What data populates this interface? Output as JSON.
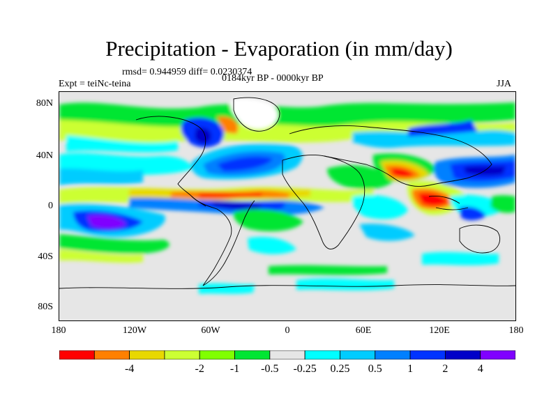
{
  "title": "Precipitation - Evaporation (in mm/day)",
  "stats": "rmsd= 0.944959 diff= 0.0230374",
  "expt": "Expt = teiNc-teina",
  "period": "0184kyr BP - 0000kyr BP",
  "season": "JJA",
  "axes": {
    "lat_labels": [
      "80N",
      "40N",
      "0",
      "40S",
      "80S"
    ],
    "lon_labels": [
      "180",
      "120W",
      "60W",
      "0",
      "60E",
      "120E",
      "180"
    ]
  },
  "colorbar": {
    "colors": [
      "#ff0000",
      "#ff8000",
      "#e8d800",
      "#ccff33",
      "#80ff00",
      "#00e633",
      "#e6e6e6",
      "#00ffff",
      "#00ccff",
      "#0080ff",
      "#0033ff",
      "#0000c8",
      "#8000ff"
    ],
    "labels": [
      "-4",
      "-2",
      "-1",
      "-0.5",
      "-0.25",
      "0.25",
      "0.5",
      "1",
      "2",
      "4"
    ]
  }
}
